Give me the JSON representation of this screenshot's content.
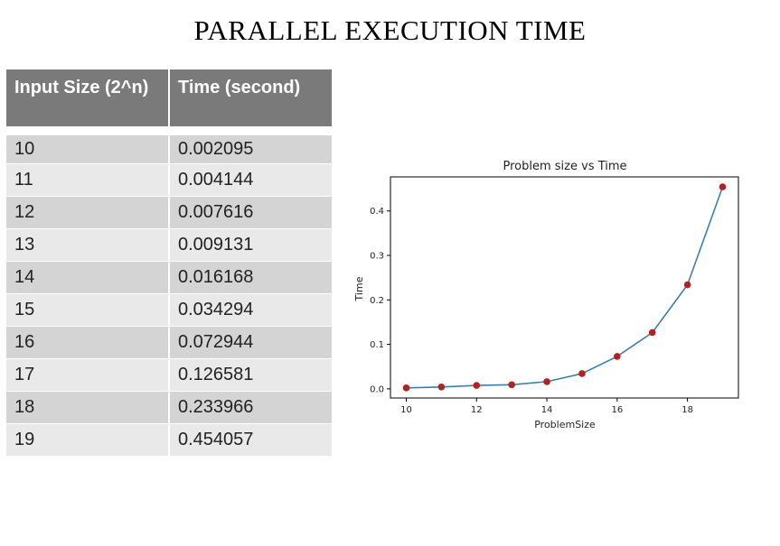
{
  "slide": {
    "title": "PARALLEL EXECUTION TIME"
  },
  "table": {
    "headers": [
      "Input Size (2^n)",
      "Time (second)"
    ],
    "rows": [
      [
        "10",
        "0.002095"
      ],
      [
        "11",
        "0.004144"
      ],
      [
        "12",
        "0.007616"
      ],
      [
        "13",
        "0.009131"
      ],
      [
        "14",
        "0.016168"
      ],
      [
        "15",
        "0.034294"
      ],
      [
        "16",
        "0.072944"
      ],
      [
        "17",
        "0.126581"
      ],
      [
        "18",
        "0.233966"
      ],
      [
        "19",
        "0.454057"
      ]
    ]
  },
  "chart_data": {
    "type": "line",
    "title": "Problem size vs Time",
    "xlabel": "ProblemSize",
    "ylabel": "Time",
    "x": [
      10,
      11,
      12,
      13,
      14,
      15,
      16,
      17,
      18,
      19
    ],
    "series": [
      {
        "values": [
          0.002095,
          0.004144,
          0.007616,
          0.009131,
          0.016168,
          0.034294,
          0.072944,
          0.126581,
          0.233966,
          0.454057
        ]
      }
    ],
    "xticks": [
      10,
      12,
      14,
      16,
      18
    ],
    "yticks": [
      0.0,
      0.1,
      0.2,
      0.3,
      0.4
    ],
    "xtick_labels": [
      "10",
      "12",
      "14",
      "16",
      "18"
    ],
    "ytick_labels": [
      "0.0",
      "0.1",
      "0.2",
      "0.3",
      "0.4"
    ],
    "xlim": [
      9.55,
      19.45
    ],
    "ylim": [
      -0.0206,
      0.4766
    ],
    "grid": false,
    "line_color": "#3b7fa8",
    "marker_color": "#b22222"
  }
}
